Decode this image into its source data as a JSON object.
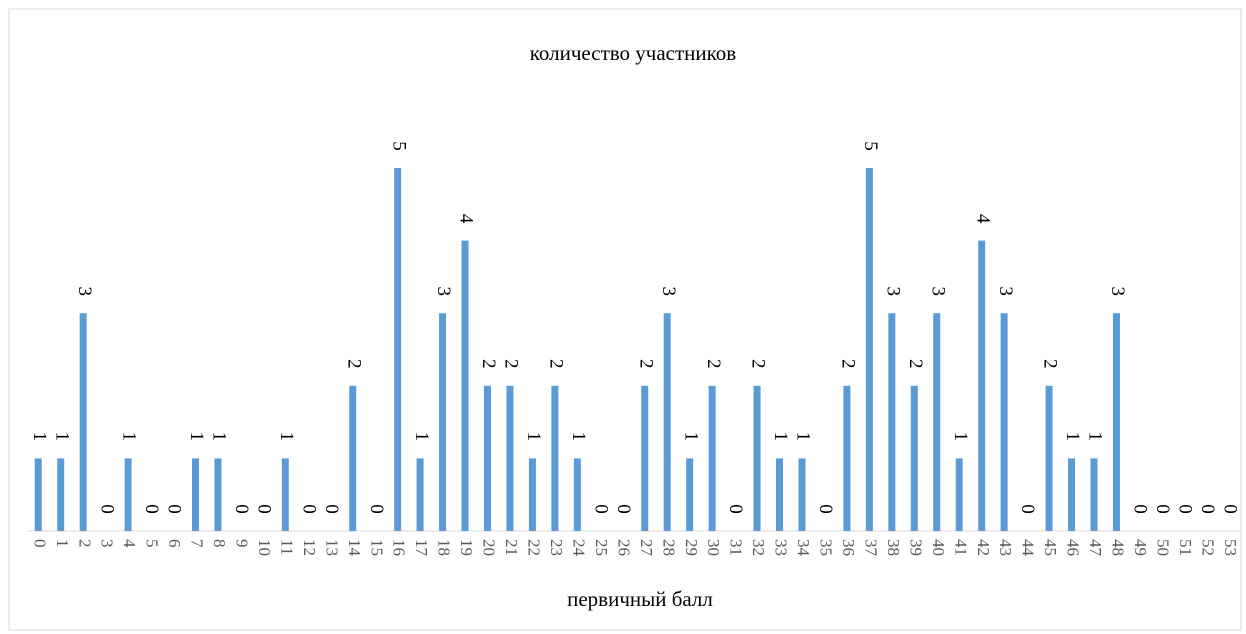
{
  "chart_data": {
    "type": "bar",
    "title": "количество участников",
    "x_label": "первичный балл",
    "categories": [
      "0",
      "1",
      "2",
      "3",
      "4",
      "5",
      "6",
      "7",
      "8",
      "9",
      "10",
      "11",
      "12",
      "13",
      "14",
      "15",
      "16",
      "17",
      "18",
      "19",
      "20",
      "21",
      "22",
      "23",
      "24",
      "25",
      "26",
      "27",
      "28",
      "29",
      "30",
      "31",
      "32",
      "33",
      "34",
      "35",
      "36",
      "37",
      "38",
      "39",
      "40",
      "41",
      "42",
      "43",
      "44",
      "45",
      "46",
      "47",
      "48",
      "49",
      "50",
      "51",
      "52",
      "53"
    ],
    "values": [
      1,
      1,
      3,
      0,
      1,
      0,
      0,
      1,
      1,
      0,
      0,
      1,
      0,
      0,
      2,
      0,
      5,
      1,
      3,
      4,
      2,
      2,
      1,
      2,
      1,
      0,
      0,
      2,
      3,
      1,
      2,
      0,
      2,
      1,
      1,
      0,
      2,
      5,
      3,
      2,
      3,
      1,
      4,
      3,
      0,
      2,
      1,
      1,
      3,
      0,
      0,
      0,
      0,
      0
    ],
    "color": "#5b9bd5"
  }
}
